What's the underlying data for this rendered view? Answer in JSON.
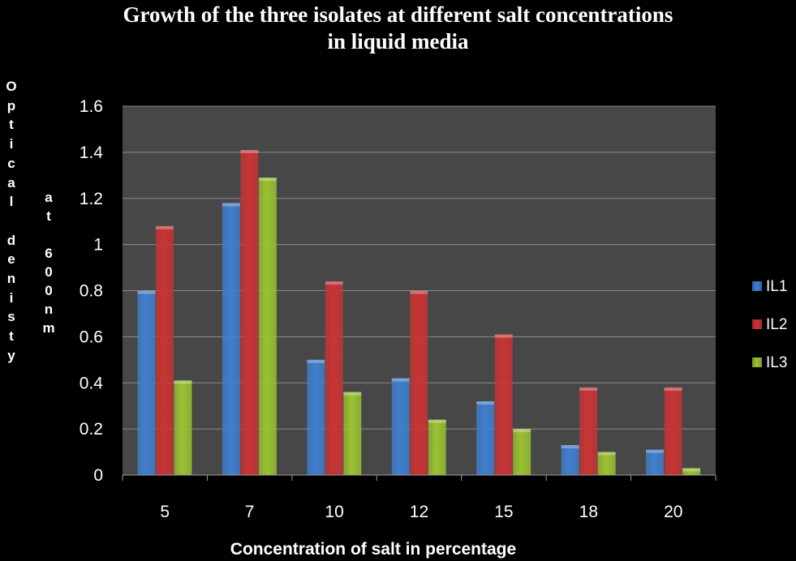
{
  "chart_data": {
    "type": "bar",
    "title_line1": "Growth of the three isolates at different salt concentrations",
    "title_line2": "in liquid media",
    "ylabel_part1": "Optical denisty",
    "ylabel_part2": "at 600nm",
    "xlabel": "Concentration of salt in percentage",
    "categories": [
      "5",
      "7",
      "10",
      "12",
      "15",
      "18",
      "20"
    ],
    "series": [
      {
        "name": "IL1",
        "color": "#3f7fcf",
        "values": [
          0.8,
          1.18,
          0.5,
          0.42,
          0.32,
          0.13,
          0.11
        ]
      },
      {
        "name": "IL2",
        "color": "#c93434",
        "values": [
          1.08,
          1.41,
          0.84,
          0.8,
          0.61,
          0.38,
          0.38
        ]
      },
      {
        "name": "IL3",
        "color": "#9bc232",
        "values": [
          0.41,
          1.29,
          0.36,
          0.24,
          0.2,
          0.1,
          0.03
        ]
      }
    ],
    "ylim": [
      0,
      1.6
    ],
    "yticks": [
      "0",
      "0.2",
      "0.4",
      "0.6",
      "0.8",
      "1",
      "1.2",
      "1.4",
      "1.6"
    ],
    "grid": true,
    "legend_position": "right"
  }
}
